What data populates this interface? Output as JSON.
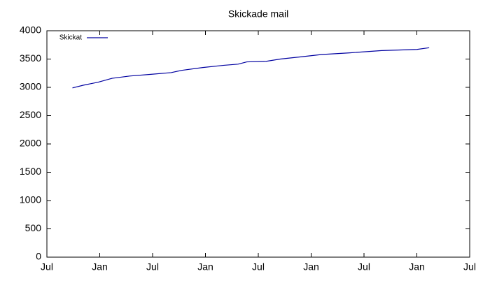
{
  "chart_data": {
    "type": "line",
    "title": "Skickade mail",
    "x": [
      2.9,
      4.2,
      5.8,
      7.4,
      9.4,
      11.8,
      14.1,
      15.3,
      17.7,
      20.1,
      21.7,
      22.7,
      24.9,
      26.5,
      28.9,
      31.2,
      34.4,
      38.0,
      42.0,
      43.4
    ],
    "series": [
      {
        "name": "Skickat",
        "color": "#0000a0",
        "values": [
          2990,
          3040,
          3090,
          3160,
          3200,
          3230,
          3260,
          3300,
          3350,
          3390,
          3410,
          3450,
          3460,
          3500,
          3540,
          3580,
          3610,
          3650,
          3670,
          3700
        ]
      }
    ],
    "xlim": [
      0,
      48
    ],
    "xticks": [
      {
        "value": 0,
        "label": "Jul"
      },
      {
        "value": 6,
        "label": "Jan"
      },
      {
        "value": 12,
        "label": "Jul"
      },
      {
        "value": 18,
        "label": "Jan"
      },
      {
        "value": 24,
        "label": "Jul"
      },
      {
        "value": 30,
        "label": "Jan"
      },
      {
        "value": 36,
        "label": "Jul"
      },
      {
        "value": 42,
        "label": "Jan"
      },
      {
        "value": 48,
        "label": "Jul"
      }
    ],
    "ylim": [
      0,
      4000
    ],
    "yticks": [
      0,
      500,
      1000,
      1500,
      2000,
      2500,
      3000,
      3500,
      4000
    ],
    "legend": "top-left"
  }
}
